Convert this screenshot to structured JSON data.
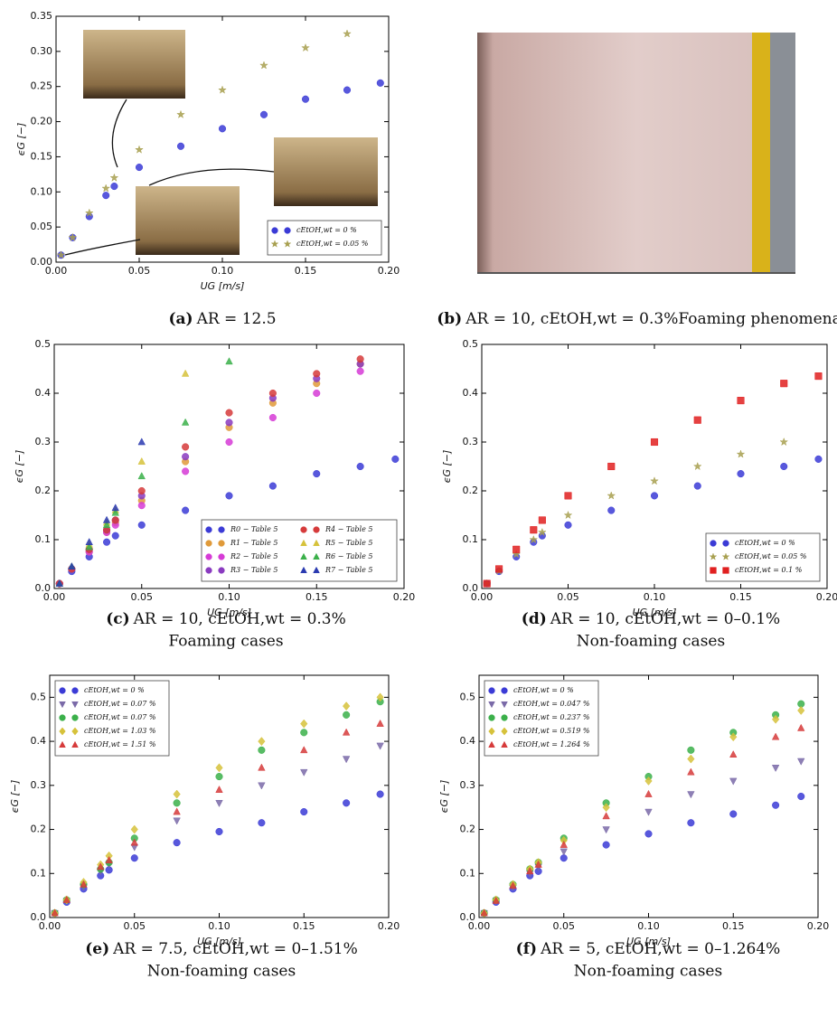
{
  "chart_data": [
    {
      "type": "scatter",
      "caption": {
        "label": "(a)",
        "text": "AR = 12.5"
      },
      "xlabel": "UG [m/s]",
      "ylabel": "ϵG [−]",
      "xlim": [
        0,
        0.2
      ],
      "ylim": [
        0,
        0.35
      ],
      "xticks": [
        {
          "value": 0,
          "label": "0.00"
        },
        {
          "value": 0.05,
          "label": "0.05"
        },
        {
          "value": 0.1,
          "label": "0.10"
        },
        {
          "value": 0.15,
          "label": "0.15"
        },
        {
          "value": 0.2,
          "label": "0.20"
        }
      ],
      "yticks": [
        {
          "value": 0,
          "label": "0.00"
        },
        {
          "value": 0.05,
          "label": "0.05"
        },
        {
          "value": 0.1,
          "label": "0.10"
        },
        {
          "value": 0.15,
          "label": "0.15"
        },
        {
          "value": 0.2,
          "label": "0.20"
        },
        {
          "value": 0.25,
          "label": "0.25"
        },
        {
          "value": 0.3,
          "label": "0.30"
        },
        {
          "value": 0.35,
          "label": "0.35"
        }
      ],
      "legend": "lower right",
      "legend_columns": 1,
      "x": [
        0.003,
        0.01,
        0.02,
        0.03,
        0.035,
        0.05,
        0.075,
        0.1,
        0.125,
        0.15,
        0.175,
        0.195
      ],
      "series": [
        {
          "name": "cEtOH,wt = 0 %",
          "color": "#3b3bd6",
          "marker": "circle",
          "values": [
            0.01,
            0.035,
            0.065,
            0.095,
            0.108,
            0.135,
            0.165,
            0.19,
            0.21,
            0.232,
            0.245,
            0.255
          ]
        },
        {
          "name": "cEtOH,wt = 0.05 %",
          "color": "#a8a050",
          "marker": "star",
          "values": [
            0.01,
            0.035,
            0.07,
            0.105,
            0.12,
            0.16,
            0.21,
            0.245,
            0.28,
            0.305,
            0.325,
            null
          ]
        }
      ]
    },
    {
      "type": "scatter",
      "caption": {
        "label": "(c)",
        "text": "AR = 10, cEtOH,wt = 0.3%",
        "subtitle": "Foaming cases"
      },
      "xlabel": "UG [m/s]",
      "ylabel": "ϵG [−]",
      "xlim": [
        0,
        0.2
      ],
      "ylim": [
        0,
        0.5
      ],
      "xticks": [
        {
          "value": 0,
          "label": "0.00"
        },
        {
          "value": 0.05,
          "label": "0.05"
        },
        {
          "value": 0.1,
          "label": "0.10"
        },
        {
          "value": 0.15,
          "label": "0.15"
        },
        {
          "value": 0.2,
          "label": "0.20"
        }
      ],
      "yticks": [
        {
          "value": 0,
          "label": "0.0"
        },
        {
          "value": 0.1,
          "label": "0.1"
        },
        {
          "value": 0.2,
          "label": "0.2"
        },
        {
          "value": 0.3,
          "label": "0.3"
        },
        {
          "value": 0.4,
          "label": "0.4"
        },
        {
          "value": 0.5,
          "label": "0.5"
        }
      ],
      "legend": "lower right",
      "legend_columns": 2,
      "x": [
        0.003,
        0.01,
        0.02,
        0.03,
        0.035,
        0.05,
        0.075,
        0.1,
        0.125,
        0.15,
        0.175,
        0.195
      ],
      "series": [
        {
          "name": "R0 − Table 5",
          "color": "#3b3bd6",
          "marker": "circle",
          "values": [
            0.01,
            0.035,
            0.065,
            0.095,
            0.108,
            0.13,
            0.16,
            0.19,
            0.21,
            0.235,
            0.25,
            0.265
          ]
        },
        {
          "name": "R1 − Table 5",
          "color": "#e09a3a",
          "marker": "circle",
          "values": [
            0.01,
            0.04,
            0.075,
            0.115,
            0.135,
            0.18,
            0.26,
            0.33,
            0.38,
            0.42,
            0.46,
            null
          ]
        },
        {
          "name": "R2 − Table 5",
          "color": "#d63bd6",
          "marker": "circle",
          "values": [
            0.01,
            0.04,
            0.075,
            0.115,
            0.13,
            0.17,
            0.24,
            0.3,
            0.35,
            0.4,
            0.445,
            null
          ]
        },
        {
          "name": "R3 − Table 5",
          "color": "#8a3bc0",
          "marker": "circle",
          "values": [
            0.01,
            0.04,
            0.08,
            0.12,
            0.14,
            0.19,
            0.27,
            0.34,
            0.39,
            0.43,
            0.46,
            null
          ]
        },
        {
          "name": "R4 − Table 5",
          "color": "#d63b3b",
          "marker": "circle",
          "values": [
            0.01,
            0.04,
            0.08,
            0.12,
            0.14,
            0.2,
            0.29,
            0.36,
            0.4,
            0.44,
            0.47,
            null
          ]
        },
        {
          "name": "R5 − Table 5",
          "color": "#d6c23b",
          "marker": "triangle",
          "values": [
            0.01,
            0.045,
            0.09,
            0.135,
            0.16,
            0.26,
            0.44,
            null,
            null,
            null,
            null,
            null
          ]
        },
        {
          "name": "R6 − Table 5",
          "color": "#3bb04a",
          "marker": "triangle",
          "values": [
            0.01,
            0.045,
            0.085,
            0.13,
            0.155,
            0.23,
            0.34,
            0.465,
            null,
            null,
            null,
            null
          ]
        },
        {
          "name": "R7 − Table 5",
          "color": "#2a3ab0",
          "marker": "triangle",
          "values": [
            0.01,
            0.045,
            0.095,
            0.14,
            0.165,
            0.3,
            null,
            null,
            null,
            null,
            null,
            null
          ]
        }
      ]
    },
    {
      "type": "scatter",
      "caption": {
        "label": "(d)",
        "text": "AR = 10, cEtOH,wt = 0–0.1%",
        "subtitle": "Non-foaming cases"
      },
      "xlabel": "UG [m/s]",
      "ylabel": "ϵG [−]",
      "xlim": [
        0,
        0.2
      ],
      "ylim": [
        0,
        0.5
      ],
      "xticks": [
        {
          "value": 0,
          "label": "0.00"
        },
        {
          "value": 0.05,
          "label": "0.05"
        },
        {
          "value": 0.1,
          "label": "0.10"
        },
        {
          "value": 0.15,
          "label": "0.15"
        },
        {
          "value": 0.2,
          "label": "0.20"
        }
      ],
      "yticks": [
        {
          "value": 0,
          "label": "0.0"
        },
        {
          "value": 0.1,
          "label": "0.1"
        },
        {
          "value": 0.2,
          "label": "0.2"
        },
        {
          "value": 0.3,
          "label": "0.3"
        },
        {
          "value": 0.4,
          "label": "0.4"
        },
        {
          "value": 0.5,
          "label": "0.5"
        }
      ],
      "legend": "lower right",
      "legend_columns": 1,
      "x": [
        0.003,
        0.01,
        0.02,
        0.03,
        0.035,
        0.05,
        0.075,
        0.1,
        0.125,
        0.15,
        0.175,
        0.195
      ],
      "series": [
        {
          "name": "cEtOH,wt = 0 %",
          "color": "#3b3bd6",
          "marker": "circle",
          "values": [
            0.01,
            0.035,
            0.065,
            0.095,
            0.108,
            0.13,
            0.16,
            0.19,
            0.21,
            0.235,
            0.25,
            0.265
          ]
        },
        {
          "name": "cEtOH,wt = 0.05 %",
          "color": "#a8a050",
          "marker": "star",
          "values": [
            0.01,
            0.036,
            0.07,
            0.1,
            0.115,
            0.15,
            0.19,
            0.22,
            0.25,
            0.275,
            0.3,
            null
          ]
        },
        {
          "name": "cEtOH,wt = 0.1 %",
          "color": "#e02020",
          "marker": "square",
          "values": [
            0.01,
            0.04,
            0.08,
            0.12,
            0.14,
            0.19,
            0.25,
            0.3,
            0.345,
            0.385,
            0.42,
            0.435
          ]
        }
      ]
    },
    {
      "type": "scatter",
      "caption": {
        "label": "(e)",
        "text": "AR = 7.5, cEtOH,wt = 0–1.51%",
        "subtitle": "Non-foaming cases"
      },
      "xlabel": "UG [m/s]",
      "ylabel": "ϵG [−]",
      "xlim": [
        0,
        0.2
      ],
      "ylim": [
        0,
        0.55
      ],
      "xticks": [
        {
          "value": 0,
          "label": "0.00"
        },
        {
          "value": 0.05,
          "label": "0.05"
        },
        {
          "value": 0.1,
          "label": "0.10"
        },
        {
          "value": 0.15,
          "label": "0.15"
        },
        {
          "value": 0.2,
          "label": "0.20"
        }
      ],
      "yticks": [
        {
          "value": 0,
          "label": "0.0"
        },
        {
          "value": 0.1,
          "label": "0.1"
        },
        {
          "value": 0.2,
          "label": "0.2"
        },
        {
          "value": 0.3,
          "label": "0.3"
        },
        {
          "value": 0.4,
          "label": "0.4"
        },
        {
          "value": 0.5,
          "label": "0.5"
        }
      ],
      "legend": "upper left",
      "legend_columns": 1,
      "x": [
        0.003,
        0.01,
        0.02,
        0.03,
        0.035,
        0.05,
        0.075,
        0.1,
        0.125,
        0.15,
        0.175,
        0.195
      ],
      "series": [
        {
          "name": "cEtOH,wt = 0 %",
          "color": "#3b3bd6",
          "marker": "circle",
          "values": [
            0.01,
            0.035,
            0.065,
            0.095,
            0.108,
            0.135,
            0.17,
            0.195,
            0.215,
            0.24,
            0.26,
            0.28
          ]
        },
        {
          "name": "cEtOH,wt = 0.07 %",
          "color": "#7a6aa8",
          "marker": "triangle-down",
          "values": [
            0.01,
            0.038,
            0.07,
            0.105,
            0.12,
            0.16,
            0.22,
            0.26,
            0.3,
            0.33,
            0.36,
            0.39
          ]
        },
        {
          "name": "cEtOH,wt = 0.07 %",
          "color": "#3bb04a",
          "marker": "circle",
          "values": [
            0.01,
            0.04,
            0.075,
            0.11,
            0.125,
            0.18,
            0.26,
            0.32,
            0.38,
            0.42,
            0.46,
            0.49
          ]
        },
        {
          "name": "cEtOH,wt = 1.03 %",
          "color": "#d6c23b",
          "marker": "diamond",
          "values": [
            0.01,
            0.04,
            0.08,
            0.12,
            0.14,
            0.2,
            0.28,
            0.34,
            0.4,
            0.44,
            0.48,
            0.5
          ]
        },
        {
          "name": "cEtOH,wt = 1.51 %",
          "color": "#d63b3b",
          "marker": "triangle",
          "values": [
            0.01,
            0.04,
            0.075,
            0.115,
            0.13,
            0.17,
            0.24,
            0.29,
            0.34,
            0.38,
            0.42,
            0.44
          ]
        }
      ]
    },
    {
      "type": "scatter",
      "caption": {
        "label": "(f)",
        "text": "AR = 5, cEtOH,wt = 0–1.264%",
        "subtitle": "Non-foaming cases"
      },
      "xlabel": "UG [m/s]",
      "ylabel": "ϵG [−]",
      "xlim": [
        0,
        0.2
      ],
      "ylim": [
        0,
        0.55
      ],
      "xticks": [
        {
          "value": 0,
          "label": "0.00"
        },
        {
          "value": 0.05,
          "label": "0.05"
        },
        {
          "value": 0.1,
          "label": "0.10"
        },
        {
          "value": 0.15,
          "label": "0.15"
        },
        {
          "value": 0.2,
          "label": "0.20"
        }
      ],
      "yticks": [
        {
          "value": 0,
          "label": "0.0"
        },
        {
          "value": 0.1,
          "label": "0.1"
        },
        {
          "value": 0.2,
          "label": "0.2"
        },
        {
          "value": 0.3,
          "label": "0.3"
        },
        {
          "value": 0.4,
          "label": "0.4"
        },
        {
          "value": 0.5,
          "label": "0.5"
        }
      ],
      "legend": "upper left",
      "legend_columns": 1,
      "x": [
        0.003,
        0.01,
        0.02,
        0.03,
        0.035,
        0.05,
        0.075,
        0.1,
        0.125,
        0.15,
        0.175,
        0.19
      ],
      "series": [
        {
          "name": "cEtOH,wt = 0 %",
          "color": "#3b3bd6",
          "marker": "circle",
          "values": [
            0.01,
            0.035,
            0.065,
            0.095,
            0.105,
            0.135,
            0.165,
            0.19,
            0.215,
            0.235,
            0.255,
            0.275
          ]
        },
        {
          "name": "cEtOH,wt = 0.047 %",
          "color": "#7a6aa8",
          "marker": "triangle-down",
          "values": [
            0.01,
            0.038,
            0.07,
            0.1,
            0.115,
            0.15,
            0.2,
            0.24,
            0.28,
            0.31,
            0.34,
            0.355
          ]
        },
        {
          "name": "cEtOH,wt = 0.237 %",
          "color": "#3bb04a",
          "marker": "circle",
          "values": [
            0.01,
            0.04,
            0.075,
            0.11,
            0.125,
            0.18,
            0.26,
            0.32,
            0.38,
            0.42,
            0.46,
            0.485
          ]
        },
        {
          "name": "cEtOH,wt = 0.519 %",
          "color": "#d6c23b",
          "marker": "diamond",
          "values": [
            0.01,
            0.04,
            0.075,
            0.11,
            0.125,
            0.175,
            0.25,
            0.31,
            0.36,
            0.41,
            0.45,
            0.47
          ]
        },
        {
          "name": "cEtOH,wt = 1.264 %",
          "color": "#d63b3b",
          "marker": "triangle",
          "values": [
            0.01,
            0.038,
            0.072,
            0.105,
            0.12,
            0.165,
            0.23,
            0.28,
            0.33,
            0.37,
            0.41,
            0.43
          ]
        }
      ]
    }
  ],
  "panel_b": {
    "caption": {
      "label": "(b)",
      "text": "AR = 10, cEtOH,wt = 0.3%Foaming phenomena"
    }
  }
}
